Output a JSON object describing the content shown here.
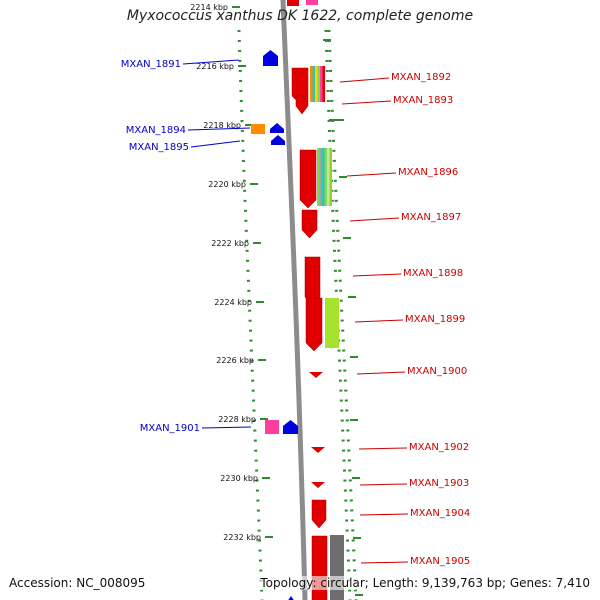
{
  "title": "Myxococcus xanthus DK 1622, complete genome",
  "accession": "Accession: NC_008095",
  "topology": "Topology: circular; Length: 9,139,763 bp; Genes: 7,410",
  "colors": {
    "backbone": "#8c8c8c",
    "dotted_track": "#2e8b2e",
    "forward_gene": "#e00000",
    "reverse_gene": "#0000e0",
    "left_label": "#0000cc",
    "right_label": "#cc0000"
  },
  "ticks": [
    {
      "label": "2214 kbp"
    },
    {
      "label": "2216 kbp"
    },
    {
      "label": "2218 kbp"
    },
    {
      "label": "2220 kbp"
    },
    {
      "label": "2222 kbp"
    },
    {
      "label": "2224 kbp"
    },
    {
      "label": "2226 kbp"
    },
    {
      "label": "2228 kbp"
    },
    {
      "label": "2230 kbp"
    },
    {
      "label": "2232 kbp"
    }
  ],
  "left_labels": [
    "MXAN_1891",
    "MXAN_1894",
    "MXAN_1895",
    "MXAN_1901"
  ],
  "right_labels": [
    "MXAN_1892",
    "MXAN_1893",
    "MXAN_1896",
    "MXAN_1897",
    "MXAN_1898",
    "MXAN_1899",
    "MXAN_1900",
    "MXAN_1902",
    "MXAN_1903",
    "MXAN_1904",
    "MXAN_1905"
  ]
}
